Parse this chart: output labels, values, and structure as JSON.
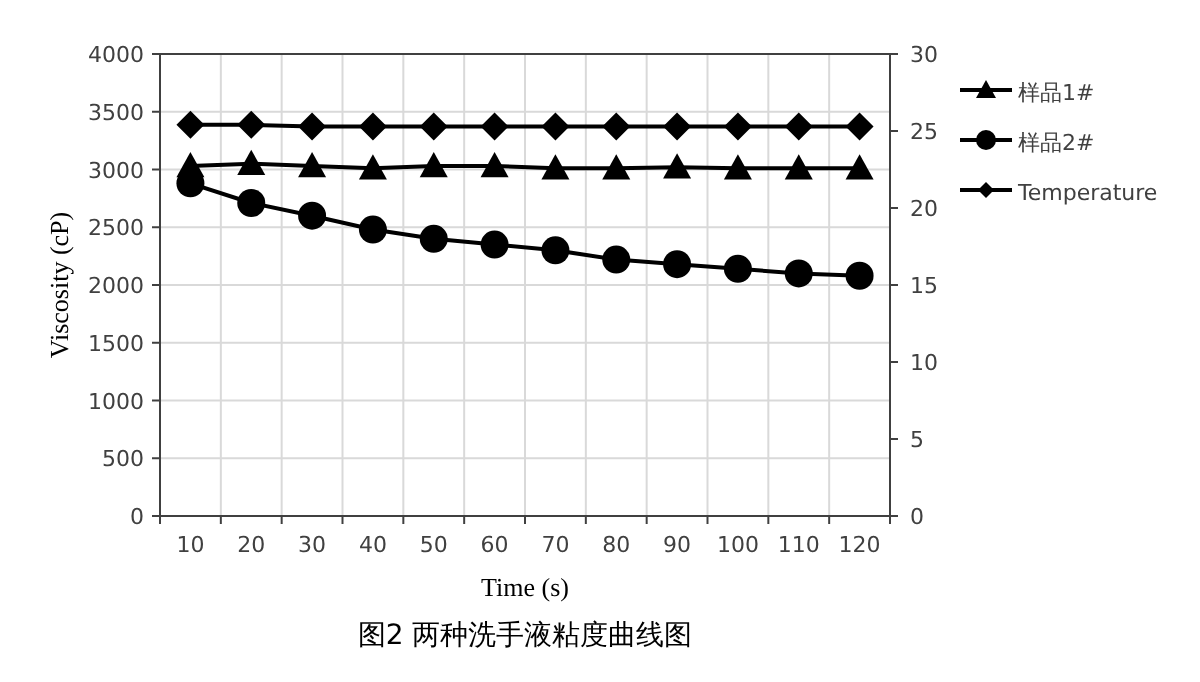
{
  "chart_data": {
    "type": "line",
    "title": "图2 两种洗手液粘度曲线图",
    "xlabel": "Time (s)",
    "ylabel": "Viscosity (cP)",
    "categories": [
      "10",
      "20",
      "30",
      "40",
      "50",
      "60",
      "70",
      "80",
      "90",
      "100",
      "110",
      "120"
    ],
    "ylim": [
      0,
      4000
    ],
    "yticks": [
      0,
      500,
      1000,
      1500,
      2000,
      2500,
      3000,
      3500,
      4000
    ],
    "y2lim": [
      0,
      30
    ],
    "y2ticks": [
      0,
      5,
      10,
      15,
      20,
      25,
      30
    ],
    "grid": true,
    "legend": "right",
    "line_style": "solid",
    "series": [
      {
        "name": "样品1#",
        "color": "#000000",
        "marker": "triangle",
        "values": [
          3030,
          3050,
          3030,
          3010,
          3030,
          3030,
          3010,
          3010,
          3020,
          3010,
          3010,
          3010
        ]
      },
      {
        "name": "样品2#",
        "color": "#000000",
        "marker": "circle",
        "values": [
          2880,
          2710,
          2600,
          2480,
          2400,
          2350,
          2300,
          2220,
          2180,
          2140,
          2100,
          2080
        ]
      },
      {
        "name": "Temperature",
        "color": "#000000",
        "marker": "diamond",
        "axis": "y2",
        "values": [
          25.4,
          25.4,
          25.3,
          25.3,
          25.3,
          25.3,
          25.3,
          25.3,
          25.3,
          25.3,
          25.3,
          25.3
        ]
      }
    ]
  }
}
